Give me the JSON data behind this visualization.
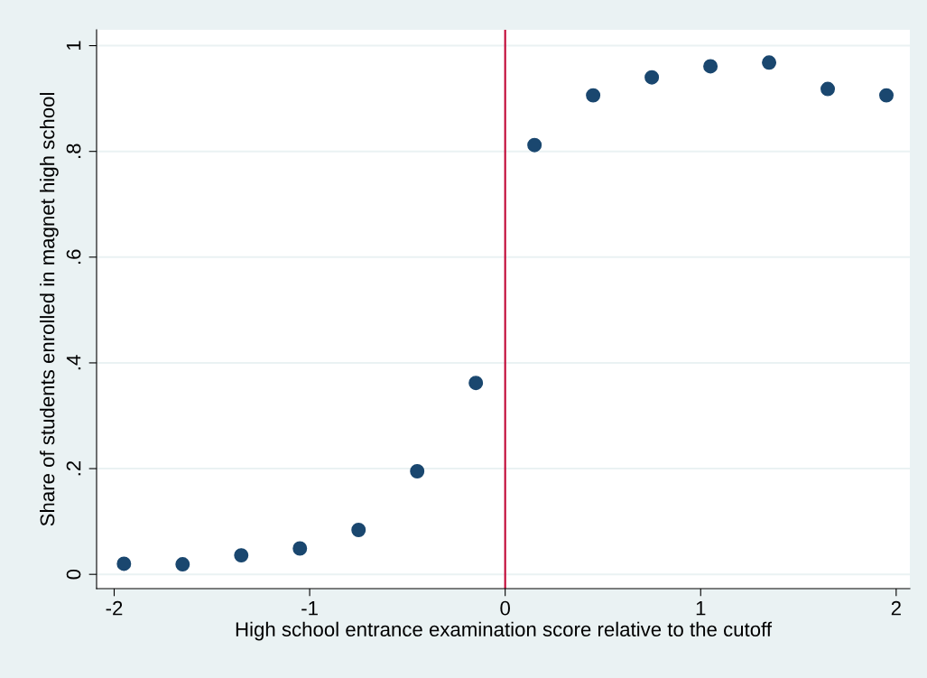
{
  "chart_data": {
    "type": "scatter",
    "xlabel": "High school entrance examination score relative to the cutoff",
    "ylabel": "Share of students enrolled in magnet high school",
    "x": [
      -1.95,
      -1.65,
      -1.35,
      -1.05,
      -0.75,
      -0.45,
      -0.15,
      0.15,
      0.45,
      0.75,
      1.05,
      1.35,
      1.65,
      1.95
    ],
    "series": [
      {
        "color": "#1a476f",
        "values": [
          0.02,
          0.019,
          0.036,
          0.049,
          0.084,
          0.195,
          0.362,
          0.812,
          0.906,
          0.94,
          0.961,
          0.968,
          0.918,
          0.906
        ]
      }
    ],
    "xlim": [
      -2.09,
      2.07
    ],
    "ylim": [
      -0.027,
      1.03
    ],
    "xticks": [
      {
        "value": -2,
        "label": "-2"
      },
      {
        "value": -1,
        "label": "-1"
      },
      0,
      1,
      2
    ],
    "yticks": [
      0,
      {
        "value": 0.2,
        "label": ".2"
      },
      {
        "value": 0.4,
        "label": ".4"
      },
      {
        "value": 0.6,
        "label": ".6"
      },
      {
        "value": 0.8,
        "label": ".8"
      },
      1
    ],
    "ref_lines": [
      {
        "axis": "x",
        "value": 0,
        "color": "#c10534"
      }
    ],
    "grid": "y",
    "marker": "circle"
  }
}
